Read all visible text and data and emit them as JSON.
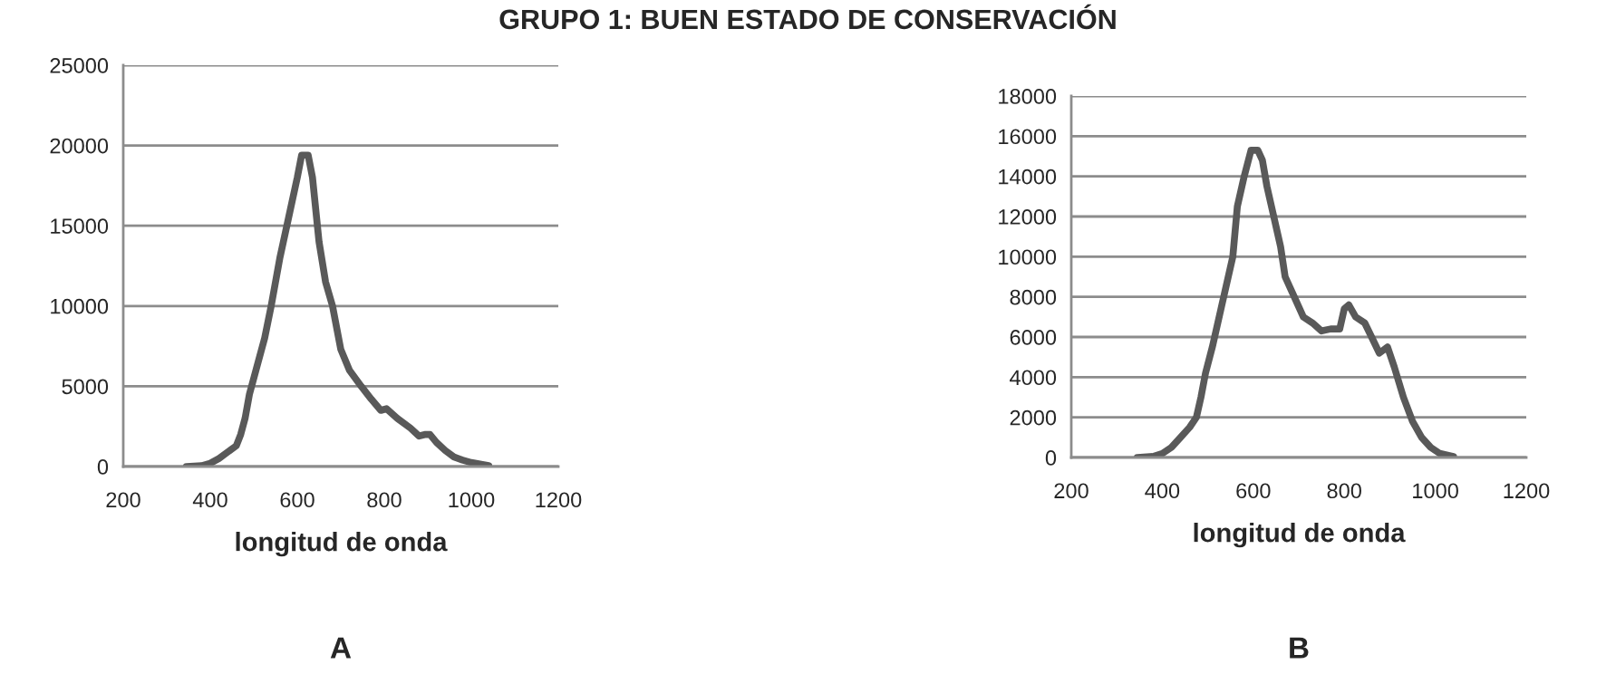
{
  "chart_data": [
    {
      "type": "line",
      "title": "GRUPO 1: BUEN ESTADO DE CONSERVACIÓN",
      "xlabel": "longitud de onda",
      "annotations": [
        "A"
      ],
      "xlim": [
        200,
        1200
      ],
      "xticks": [
        200,
        400,
        600,
        800,
        1000,
        1200
      ],
      "ylim": [
        0,
        25000
      ],
      "yticks": [
        0,
        5000,
        10000,
        15000,
        20000,
        25000
      ],
      "grid": "y",
      "series": [
        {
          "color": "#595959",
          "x": [
            345,
            380,
            400,
            420,
            440,
            460,
            470,
            480,
            490,
            510,
            525,
            540,
            560,
            580,
            600,
            610,
            625,
            635,
            650,
            665,
            681,
            700,
            720,
            747,
            770,
            792,
            805,
            830,
            860,
            880,
            895,
            905,
            920,
            940,
            960,
            980,
            1000,
            1020,
            1040
          ],
          "values": [
            0,
            50,
            200,
            500,
            900,
            1300,
            2000,
            3000,
            4500,
            6500,
            8000,
            10000,
            13000,
            15500,
            18000,
            19400,
            19400,
            18000,
            14000,
            11500,
            10000,
            7300,
            6000,
            5000,
            4200,
            3500,
            3600,
            3000,
            2400,
            1900,
            2000,
            2000,
            1500,
            1000,
            600,
            400,
            250,
            150,
            50
          ]
        }
      ]
    },
    {
      "type": "line",
      "xlabel": "longitud de onda",
      "annotations": [
        "B"
      ],
      "xlim": [
        200,
        1200
      ],
      "xticks": [
        200,
        400,
        600,
        800,
        1000,
        1200
      ],
      "ylim": [
        0,
        18000
      ],
      "yticks": [
        0,
        2000,
        4000,
        6000,
        8000,
        10000,
        12000,
        14000,
        16000,
        18000
      ],
      "grid": "y",
      "series": [
        {
          "color": "#595959",
          "x": [
            345,
            380,
            400,
            420,
            440,
            460,
            475,
            485,
            495,
            510,
            530,
            555,
            565,
            580,
            595,
            610,
            620,
            630,
            645,
            660,
            670,
            690,
            710,
            730,
            750,
            770,
            790,
            800,
            810,
            825,
            845,
            860,
            877,
            895,
            910,
            930,
            950,
            970,
            990,
            1010,
            1040
          ],
          "values": [
            0,
            50,
            200,
            500,
            1000,
            1500,
            2000,
            3000,
            4200,
            5500,
            7500,
            10000,
            12500,
            14000,
            15300,
            15300,
            14800,
            13500,
            12000,
            10500,
            9000,
            8000,
            7000,
            6700,
            6300,
            6400,
            6400,
            7400,
            7600,
            7000,
            6700,
            6000,
            5200,
            5500,
            4500,
            3000,
            1800,
            1000,
            500,
            200,
            50
          ]
        }
      ]
    }
  ]
}
